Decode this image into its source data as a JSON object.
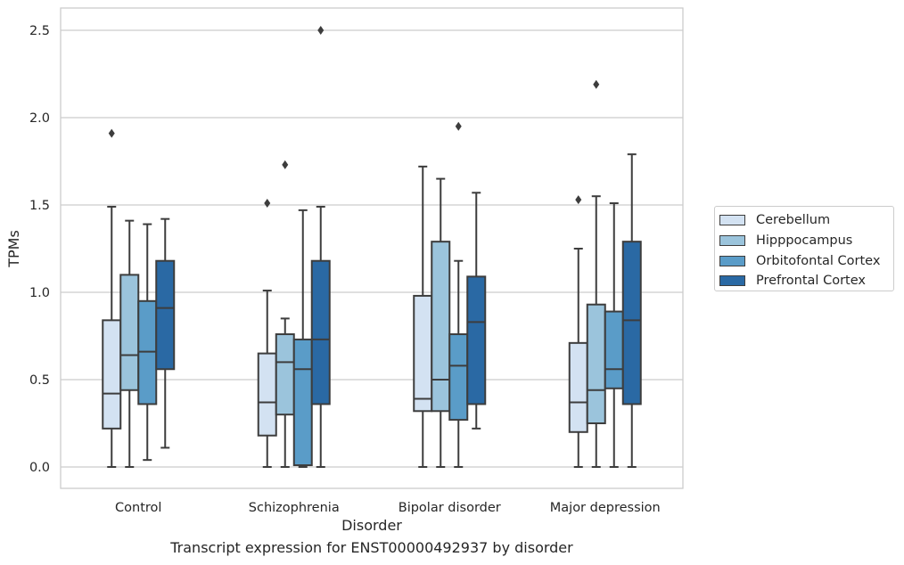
{
  "chart_data": {
    "type": "box",
    "title": "",
    "xlabel": "Disorder",
    "ylabel": "TPMs",
    "caption": "Transcript expression for ENST00000492937 by disorder",
    "ylim": [
      -0.12,
      2.63
    ],
    "yticks": [
      "0.0",
      "0.5",
      "1.0",
      "1.5",
      "2.0",
      "2.5"
    ],
    "grid": "horizontal",
    "legend_position": "right",
    "categories": [
      "Control",
      "Schizophrenia",
      "Bipolar disorder",
      "Major depression"
    ],
    "series": [
      {
        "name": "Cerebellum",
        "color": "#d3e2f2",
        "boxes": [
          {
            "whislo": 0.0,
            "q1": 0.22,
            "med": 0.42,
            "q3": 0.84,
            "whishi": 1.49,
            "fliers": [
              1.91
            ]
          },
          {
            "whislo": 0.0,
            "q1": 0.18,
            "med": 0.37,
            "q3": 0.65,
            "whishi": 1.01,
            "fliers": [
              1.51
            ]
          },
          {
            "whislo": 0.0,
            "q1": 0.32,
            "med": 0.39,
            "q3": 0.98,
            "whishi": 1.72,
            "fliers": []
          },
          {
            "whislo": 0.0,
            "q1": 0.2,
            "med": 0.37,
            "q3": 0.71,
            "whishi": 1.25,
            "fliers": [
              1.53
            ]
          }
        ]
      },
      {
        "name": "Hipppocampus",
        "color": "#9bc4dc",
        "boxes": [
          {
            "whislo": 0.0,
            "q1": 0.44,
            "med": 0.64,
            "q3": 1.1,
            "whishi": 1.41,
            "fliers": []
          },
          {
            "whislo": 0.0,
            "q1": 0.3,
            "med": 0.6,
            "q3": 0.76,
            "whishi": 0.85,
            "fliers": [
              1.73
            ]
          },
          {
            "whislo": 0.0,
            "q1": 0.32,
            "med": 0.5,
            "q3": 1.29,
            "whishi": 1.65,
            "fliers": []
          },
          {
            "whislo": 0.0,
            "q1": 0.25,
            "med": 0.44,
            "q3": 0.93,
            "whishi": 1.55,
            "fliers": [
              2.19
            ]
          }
        ]
      },
      {
        "name": "Orbitofontal Cortex",
        "color": "#5a9cc8",
        "boxes": [
          {
            "whislo": 0.04,
            "q1": 0.36,
            "med": 0.66,
            "q3": 0.95,
            "whishi": 1.39,
            "fliers": []
          },
          {
            "whislo": 0.0,
            "q1": 0.01,
            "med": 0.56,
            "q3": 0.73,
            "whishi": 1.47,
            "fliers": []
          },
          {
            "whislo": 0.0,
            "q1": 0.27,
            "med": 0.58,
            "q3": 0.76,
            "whishi": 1.18,
            "fliers": [
              1.95
            ]
          },
          {
            "whislo": 0.0,
            "q1": 0.45,
            "med": 0.56,
            "q3": 0.89,
            "whishi": 1.51,
            "fliers": []
          }
        ]
      },
      {
        "name": "Prefrontal Cortex",
        "color": "#2a69a4",
        "boxes": [
          {
            "whislo": 0.11,
            "q1": 0.56,
            "med": 0.91,
            "q3": 1.18,
            "whishi": 1.42,
            "fliers": []
          },
          {
            "whislo": 0.0,
            "q1": 0.36,
            "med": 0.73,
            "q3": 1.18,
            "whishi": 1.49,
            "fliers": [
              2.5
            ]
          },
          {
            "whislo": 0.22,
            "q1": 0.36,
            "med": 0.83,
            "q3": 1.09,
            "whishi": 1.57,
            "fliers": []
          },
          {
            "whislo": 0.0,
            "q1": 0.36,
            "med": 0.84,
            "q3": 1.29,
            "whishi": 1.79,
            "fliers": []
          }
        ]
      }
    ]
  }
}
